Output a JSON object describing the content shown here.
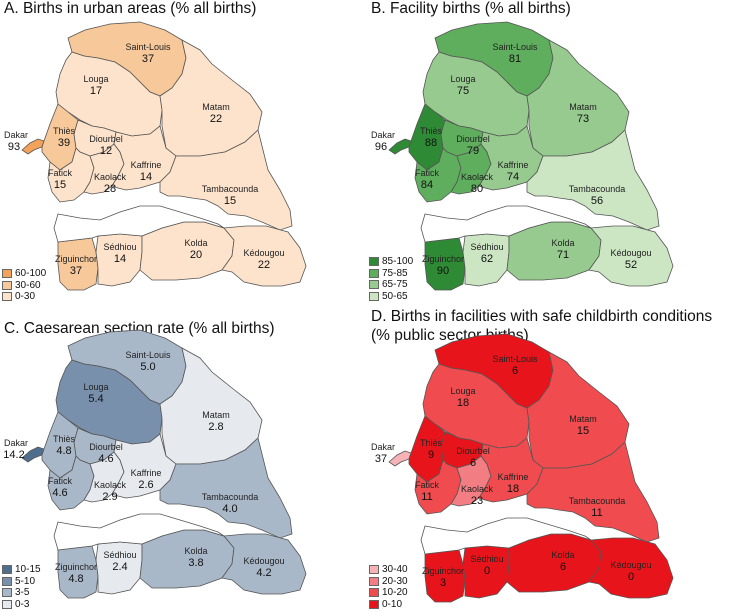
{
  "panels": [
    {
      "title": "A. Births in urban areas (% all births)",
      "legend": [
        {
          "label": "60-100",
          "color": "#f3a25b"
        },
        {
          "label": "30-60",
          "color": "#f7c89a"
        },
        {
          "label": "0-30",
          "color": "#fde3cb"
        }
      ],
      "regions": {
        "saint_louis": {
          "name": "Saint-Louis",
          "value": "37",
          "color": "#f7c89a"
        },
        "louga": {
          "name": "Louga",
          "value": "17",
          "color": "#fde3cb"
        },
        "matam": {
          "name": "Matam",
          "value": "22",
          "color": "#fde3cb"
        },
        "dakar": {
          "name": "Dakar",
          "value": "93",
          "color": "#f3a25b"
        },
        "thies": {
          "name": "Thiès",
          "value": "39",
          "color": "#f7c89a"
        },
        "diourbel": {
          "name": "Diourbel",
          "value": "12",
          "color": "#fde3cb"
        },
        "fatick": {
          "name": "Fatick",
          "value": "15",
          "color": "#fde3cb"
        },
        "kaolack": {
          "name": "Kaolack",
          "value": "28",
          "color": "#fde3cb"
        },
        "kaffrine": {
          "name": "Kaffrine",
          "value": "14",
          "color": "#fde3cb"
        },
        "tambacounda": {
          "name": "Tambacounda",
          "value": "15",
          "color": "#fde3cb"
        },
        "ziguinchor": {
          "name": "Ziguinchor",
          "value": "37",
          "color": "#f7c89a"
        },
        "sedhiou": {
          "name": "Sédhiou",
          "value": "14",
          "color": "#fde3cb"
        },
        "kolda": {
          "name": "Kolda",
          "value": "20",
          "color": "#fde3cb"
        },
        "kedougou": {
          "name": "Kédougou",
          "value": "22",
          "color": "#fde3cb"
        }
      }
    },
    {
      "title": "B. Facility births (% all births)",
      "legend": [
        {
          "label": "85-100",
          "color": "#2f8a35"
        },
        {
          "label": "75-85",
          "color": "#5fae5e"
        },
        {
          "label": "65-75",
          "color": "#96ca8e"
        },
        {
          "label": "50-65",
          "color": "#cce6c4"
        }
      ],
      "regions": {
        "saint_louis": {
          "name": "Saint-Louis",
          "value": "81",
          "color": "#5fae5e"
        },
        "louga": {
          "name": "Louga",
          "value": "75",
          "color": "#96ca8e"
        },
        "matam": {
          "name": "Matam",
          "value": "73",
          "color": "#96ca8e"
        },
        "dakar": {
          "name": "Dakar",
          "value": "96",
          "color": "#2f8a35"
        },
        "thies": {
          "name": "Thiès",
          "value": "88",
          "color": "#2f8a35"
        },
        "diourbel": {
          "name": "Diourbel",
          "value": "79",
          "color": "#5fae5e"
        },
        "fatick": {
          "name": "Fatick",
          "value": "84",
          "color": "#5fae5e"
        },
        "kaolack": {
          "name": "Kaolack",
          "value": "80",
          "color": "#5fae5e"
        },
        "kaffrine": {
          "name": "Kaffrine",
          "value": "74",
          "color": "#96ca8e"
        },
        "tambacounda": {
          "name": "Tambacounda",
          "value": "56",
          "color": "#cce6c4"
        },
        "ziguinchor": {
          "name": "Ziguinchor",
          "value": "90",
          "color": "#2f8a35"
        },
        "sedhiou": {
          "name": "Sédhiou",
          "value": "62",
          "color": "#cce6c4"
        },
        "kolda": {
          "name": "Kolda",
          "value": "71",
          "color": "#96ca8e"
        },
        "kedougou": {
          "name": "Kédougou",
          "value": "52",
          "color": "#cce6c4"
        }
      }
    },
    {
      "title": "C. Caesarean section rate (% all births)",
      "legend": [
        {
          "label": "10-15",
          "color": "#4f6e8e"
        },
        {
          "label": "5-10",
          "color": "#7890ab"
        },
        {
          "label": "3-5",
          "color": "#a9b8c9"
        },
        {
          "label": "0-3",
          "color": "#e6eaef"
        }
      ],
      "regions": {
        "saint_louis": {
          "name": "Saint-Louis",
          "value": "5.0",
          "color": "#a9b8c9"
        },
        "louga": {
          "name": "Louga",
          "value": "5.4",
          "color": "#7890ab"
        },
        "matam": {
          "name": "Matam",
          "value": "2.8",
          "color": "#e6eaef"
        },
        "dakar": {
          "name": "Dakar",
          "value": "14.2",
          "color": "#4f6e8e"
        },
        "thies": {
          "name": "Thiès",
          "value": "4.8",
          "color": "#a9b8c9"
        },
        "diourbel": {
          "name": "Diourbel",
          "value": "4.6",
          "color": "#a9b8c9"
        },
        "fatick": {
          "name": "Fatick",
          "value": "4.6",
          "color": "#a9b8c9"
        },
        "kaolack": {
          "name": "Kaolack",
          "value": "2.9",
          "color": "#e6eaef"
        },
        "kaffrine": {
          "name": "Kaffrine",
          "value": "2.6",
          "color": "#e6eaef"
        },
        "tambacounda": {
          "name": "Tambacounda",
          "value": "4.0",
          "color": "#a9b8c9"
        },
        "ziguinchor": {
          "name": "Ziguinchor",
          "value": "4.8",
          "color": "#a9b8c9"
        },
        "sedhiou": {
          "name": "Sédhiou",
          "value": "2.4",
          "color": "#e6eaef"
        },
        "kolda": {
          "name": "Kolda",
          "value": "3.8",
          "color": "#a9b8c9"
        },
        "kedougou": {
          "name": "Kédougou",
          "value": "4.2",
          "color": "#a9b8c9"
        }
      }
    },
    {
      "title": "D. Births in facilities with safe childbirth conditions",
      "title2": "(% public sector births)",
      "legend": [
        {
          "label": "30-40",
          "color": "#f6b3b6"
        },
        {
          "label": "20-30",
          "color": "#f27d82"
        },
        {
          "label": "10-20",
          "color": "#f04b4e"
        },
        {
          "label": "0-10",
          "color": "#e8141b"
        }
      ],
      "regions": {
        "saint_louis": {
          "name": "Saint-Louis",
          "value": "6",
          "color": "#e8141b"
        },
        "louga": {
          "name": "Louga",
          "value": "18",
          "color": "#f04b4e"
        },
        "matam": {
          "name": "Matam",
          "value": "15",
          "color": "#f04b4e"
        },
        "dakar": {
          "name": "Dakar",
          "value": "37",
          "color": "#f6b3b6"
        },
        "thies": {
          "name": "Thiès",
          "value": "9",
          "color": "#e8141b"
        },
        "diourbel": {
          "name": "Diourbel",
          "value": "6",
          "color": "#e8141b"
        },
        "fatick": {
          "name": "Fatick",
          "value": "11",
          "color": "#f04b4e"
        },
        "kaolack": {
          "name": "Kaolack",
          "value": "23",
          "color": "#f27d82"
        },
        "kaffrine": {
          "name": "Kaffrine",
          "value": "18",
          "color": "#f04b4e"
        },
        "tambacounda": {
          "name": "Tambacounda",
          "value": "11",
          "color": "#f04b4e"
        },
        "ziguinchor": {
          "name": "Ziguinchor",
          "value": "3",
          "color": "#e8141b"
        },
        "sedhiou": {
          "name": "Sédhiou",
          "value": "0",
          "color": "#e8141b"
        },
        "kolda": {
          "name": "Kolda",
          "value": "6",
          "color": "#e8141b"
        },
        "kedougou": {
          "name": "Kédougou",
          "value": "0",
          "color": "#e8141b"
        }
      }
    }
  ]
}
